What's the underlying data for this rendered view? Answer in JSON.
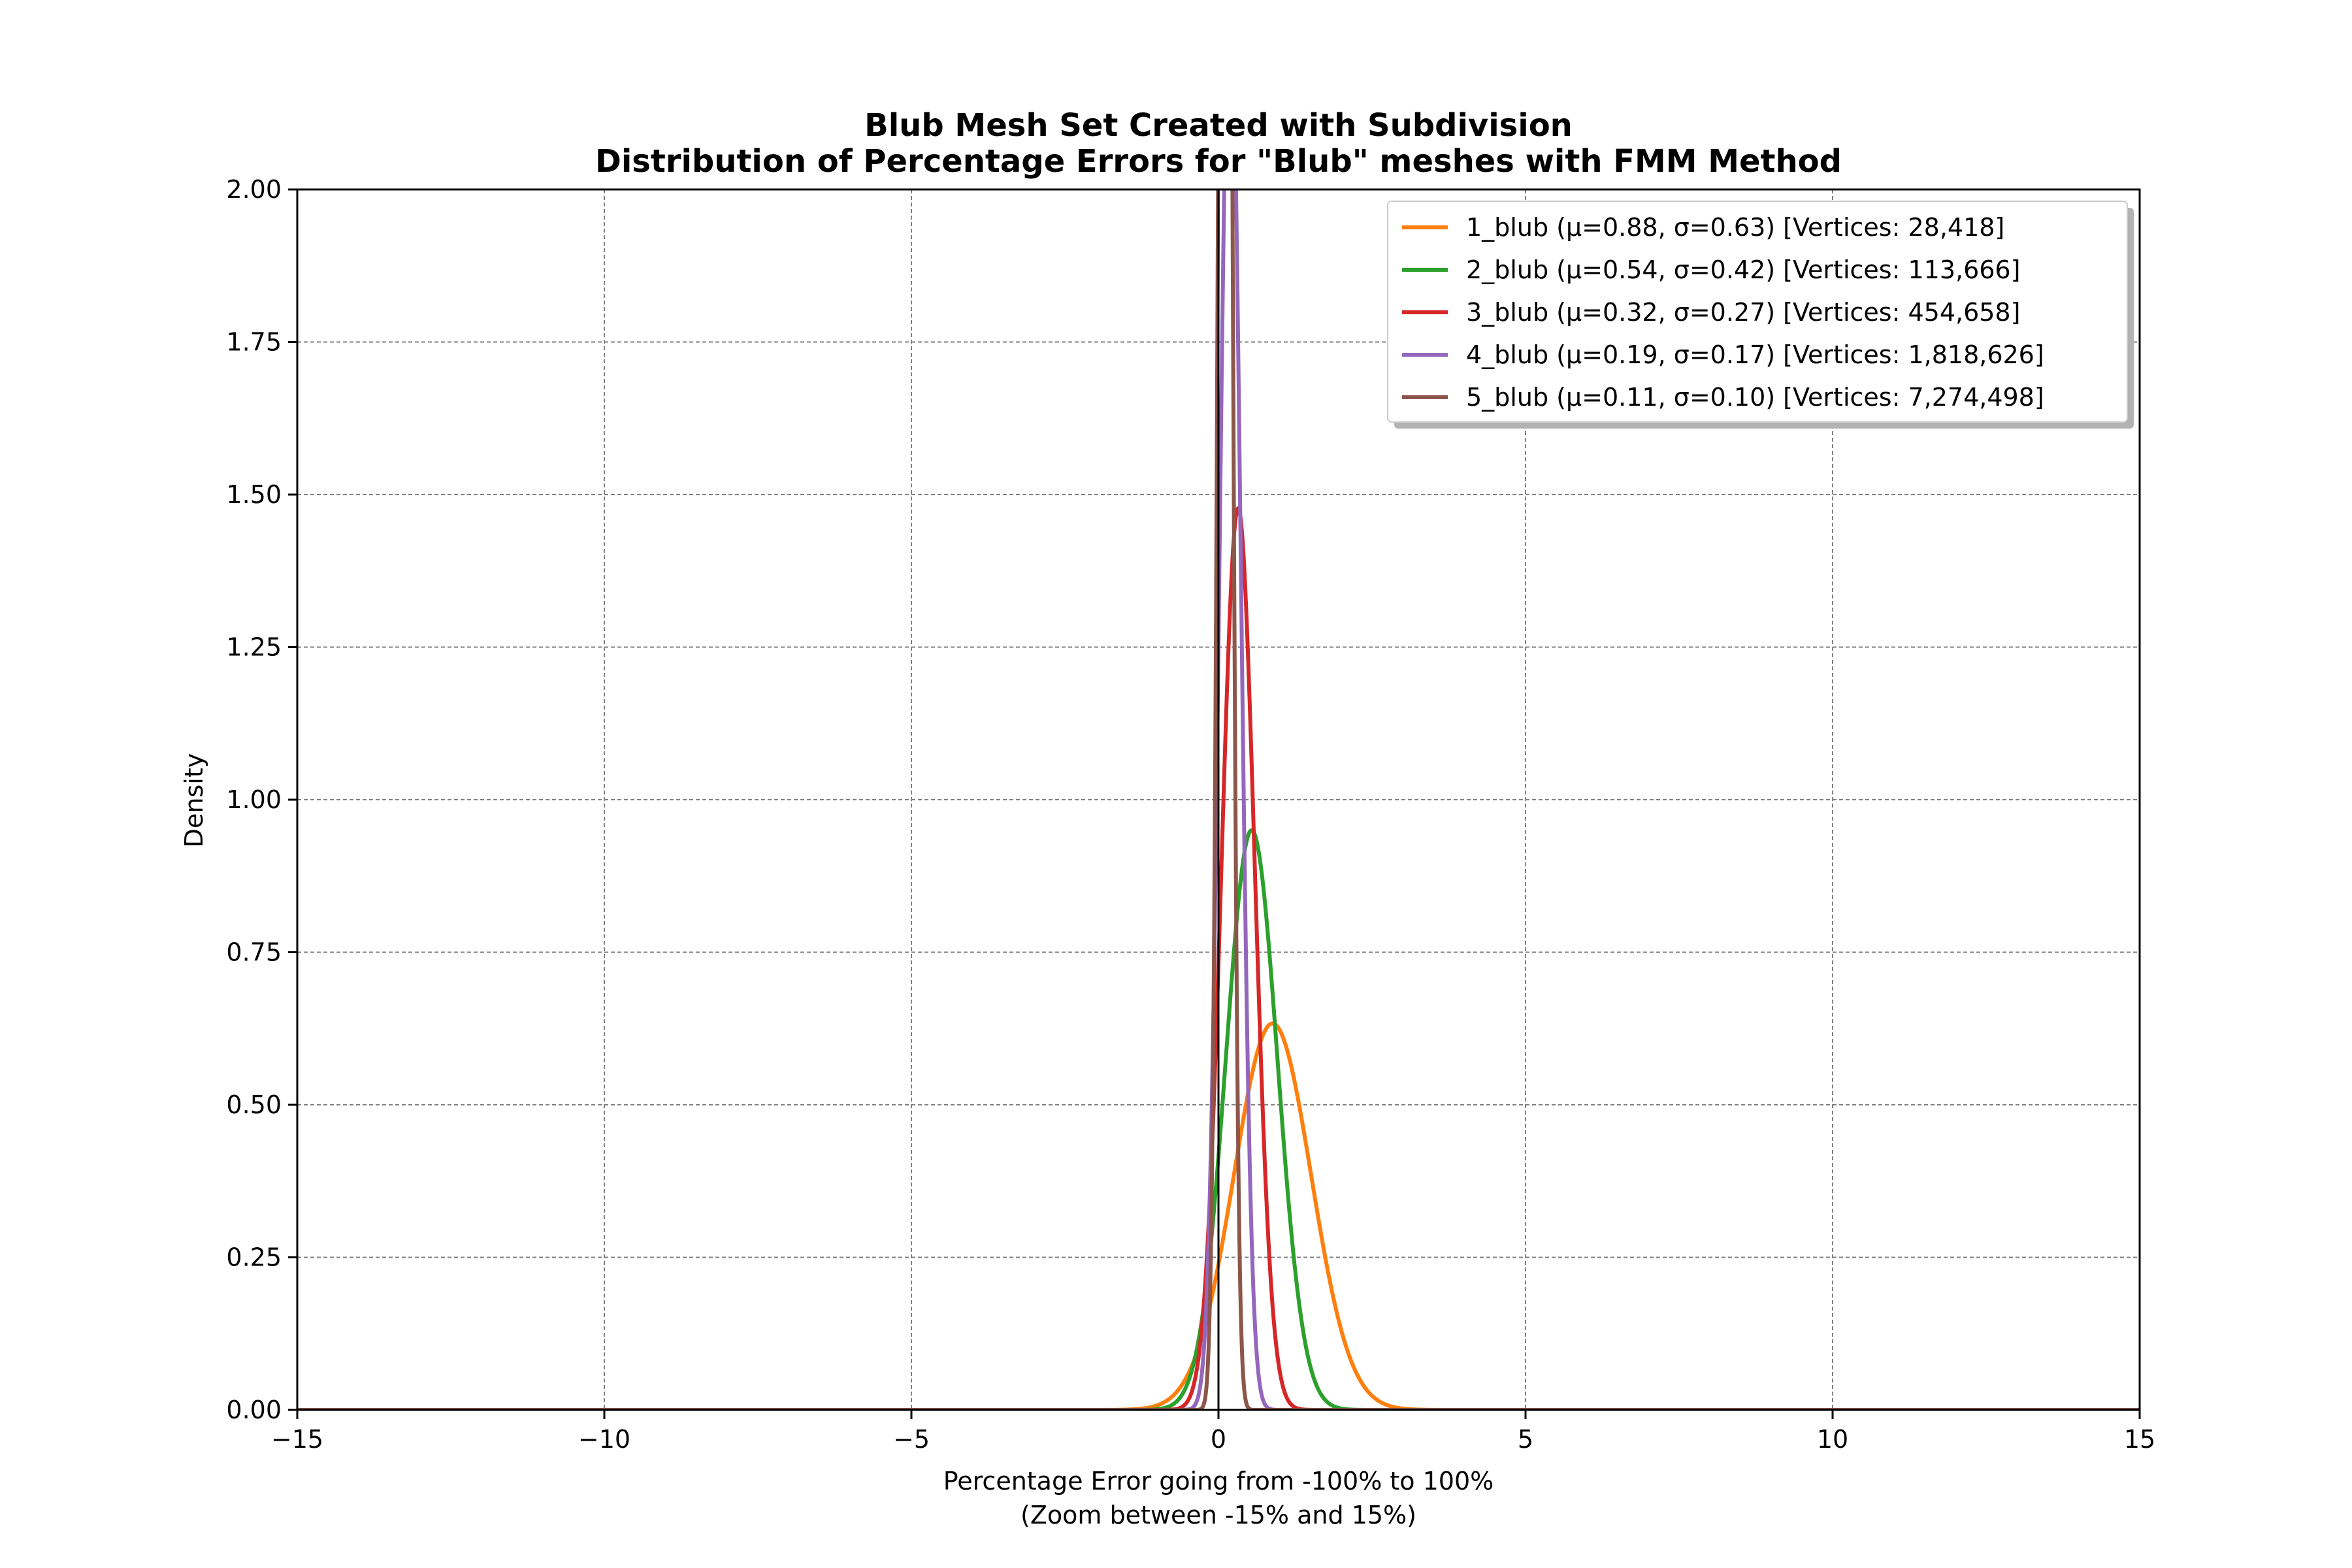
{
  "chart_data": {
    "type": "line",
    "title_line1": "Blub Mesh Set Created with Subdivision",
    "title_line2": "Distribution of Percentage Errors for \"Blub\" meshes with FMM Method",
    "xlabel_line1": "Percentage Error going from -100% to 100%",
    "xlabel_line2": "(Zoom between -15% and 15%)",
    "ylabel": "Density",
    "xlim": [
      -15,
      15
    ],
    "ylim": [
      0,
      2
    ],
    "xticks": [
      -15,
      -10,
      -5,
      0,
      5,
      10,
      15
    ],
    "xtick_labels": [
      "−15",
      "−10",
      "−5",
      "0",
      "5",
      "10",
      "15"
    ],
    "yticks": [
      0,
      0.25,
      0.5,
      0.75,
      1.0,
      1.25,
      1.5,
      1.75,
      2.0
    ],
    "ytick_labels": [
      "0.00",
      "0.25",
      "0.50",
      "0.75",
      "1.00",
      "1.25",
      "1.50",
      "1.75",
      "2.00"
    ],
    "grid": true,
    "vertical_reference_line_x": 0,
    "legend_position": "upper right",
    "series": [
      {
        "name": "1_blub (μ=0.88, σ=0.63) [Vertices: 28,418]",
        "mu": 0.88,
        "sigma": 0.63,
        "color": "#ff7f0e"
      },
      {
        "name": "2_blub (μ=0.54, σ=0.42) [Vertices: 113,666]",
        "mu": 0.54,
        "sigma": 0.42,
        "color": "#2ca02c"
      },
      {
        "name": "3_blub (μ=0.32, σ=0.27) [Vertices: 454,658]",
        "mu": 0.32,
        "sigma": 0.27,
        "color": "#d62728"
      },
      {
        "name": "4_blub (μ=0.19, σ=0.17) [Vertices: 1,818,626]",
        "mu": 0.19,
        "sigma": 0.17,
        "color": "#9467bd"
      },
      {
        "name": "5_blub (μ=0.11, σ=0.10) [Vertices: 7,274,498]",
        "mu": 0.11,
        "sigma": 0.1,
        "color": "#8c564b"
      }
    ]
  }
}
